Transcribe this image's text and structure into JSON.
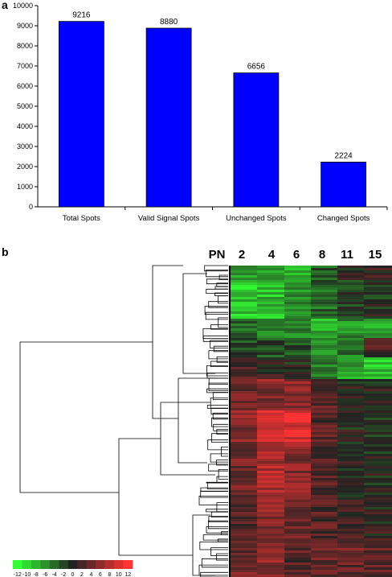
{
  "panels": {
    "a": "a",
    "b": "b"
  },
  "chart_data": [
    {
      "type": "bar",
      "categories": [
        "Total Spots",
        "Valid Signal Spots",
        "Unchanged Spots",
        "Changed Spots"
      ],
      "values": [
        9216,
        8880,
        6656,
        2224
      ],
      "value_labels": [
        "9216",
        "8880",
        "6656",
        "2224"
      ],
      "ylim": [
        0,
        10000
      ],
      "yticks": [
        0,
        1000,
        2000,
        3000,
        4000,
        5000,
        6000,
        7000,
        8000,
        9000,
        10000
      ],
      "grid": false,
      "bar_color": "#0000ff"
    },
    {
      "type": "heatmap",
      "row_header": "PN",
      "columns": [
        "2",
        "4",
        "6",
        "8",
        "11",
        "15"
      ],
      "color_scale": {
        "labels": [
          "-12",
          "-10",
          "-8",
          "-6",
          "-4",
          "-2",
          "0",
          "2",
          "4",
          "6",
          "8",
          "10",
          "12"
        ],
        "low_color": "#33ff33",
        "mid_color": "#222222",
        "high_color": "#ff3333"
      }
    }
  ]
}
